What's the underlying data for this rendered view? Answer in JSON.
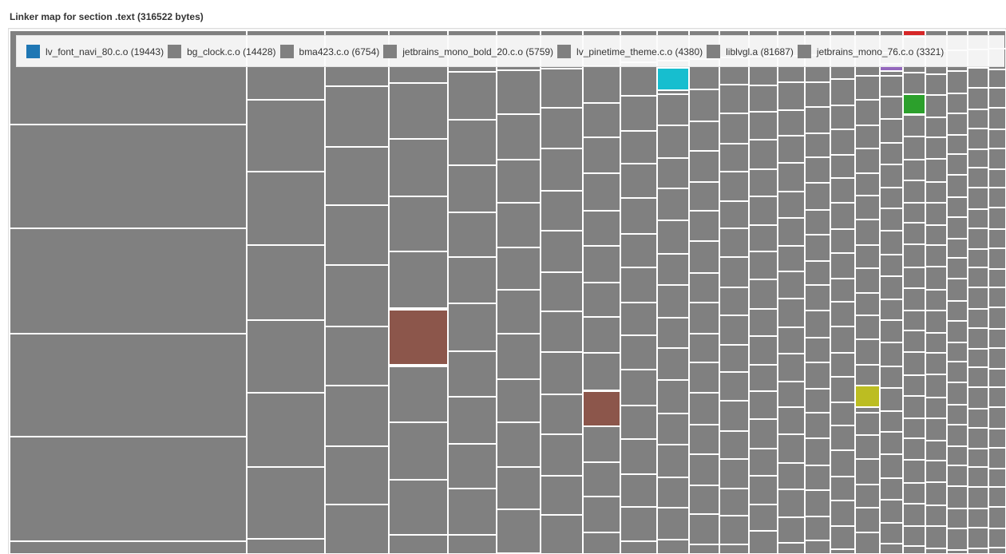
{
  "chart_data": {
    "type": "treemap",
    "title": "Linker map for section .text (316522 bytes)",
    "legend": [
      {
        "name": "lv_font_navi_80.c.o",
        "value": 19443,
        "color": "#1f77b4"
      },
      {
        "name": "bg_clock.c.o",
        "value": 14428,
        "color": "#808080"
      },
      {
        "name": "bma423.c.o",
        "value": 6754,
        "color": "#808080"
      },
      {
        "name": "jetbrains_mono_bold_20.c.o",
        "value": 5759,
        "color": "#808080"
      },
      {
        "name": "lv_pinetime_theme.c.o",
        "value": 4380,
        "color": "#808080"
      },
      {
        "name": "liblvgl.a",
        "value": 81687,
        "color": "#808080"
      },
      {
        "name": "jetbrains_mono_76.c.o",
        "value": 3321,
        "color": "#808080"
      }
    ],
    "legend_placement": "top",
    "colors": {
      "default": "#808080",
      "highlights": [
        "#17becf",
        "#8c564b",
        "#bcbd22",
        "#2ca02c",
        "#d62728",
        "#9467bd"
      ]
    }
  }
}
